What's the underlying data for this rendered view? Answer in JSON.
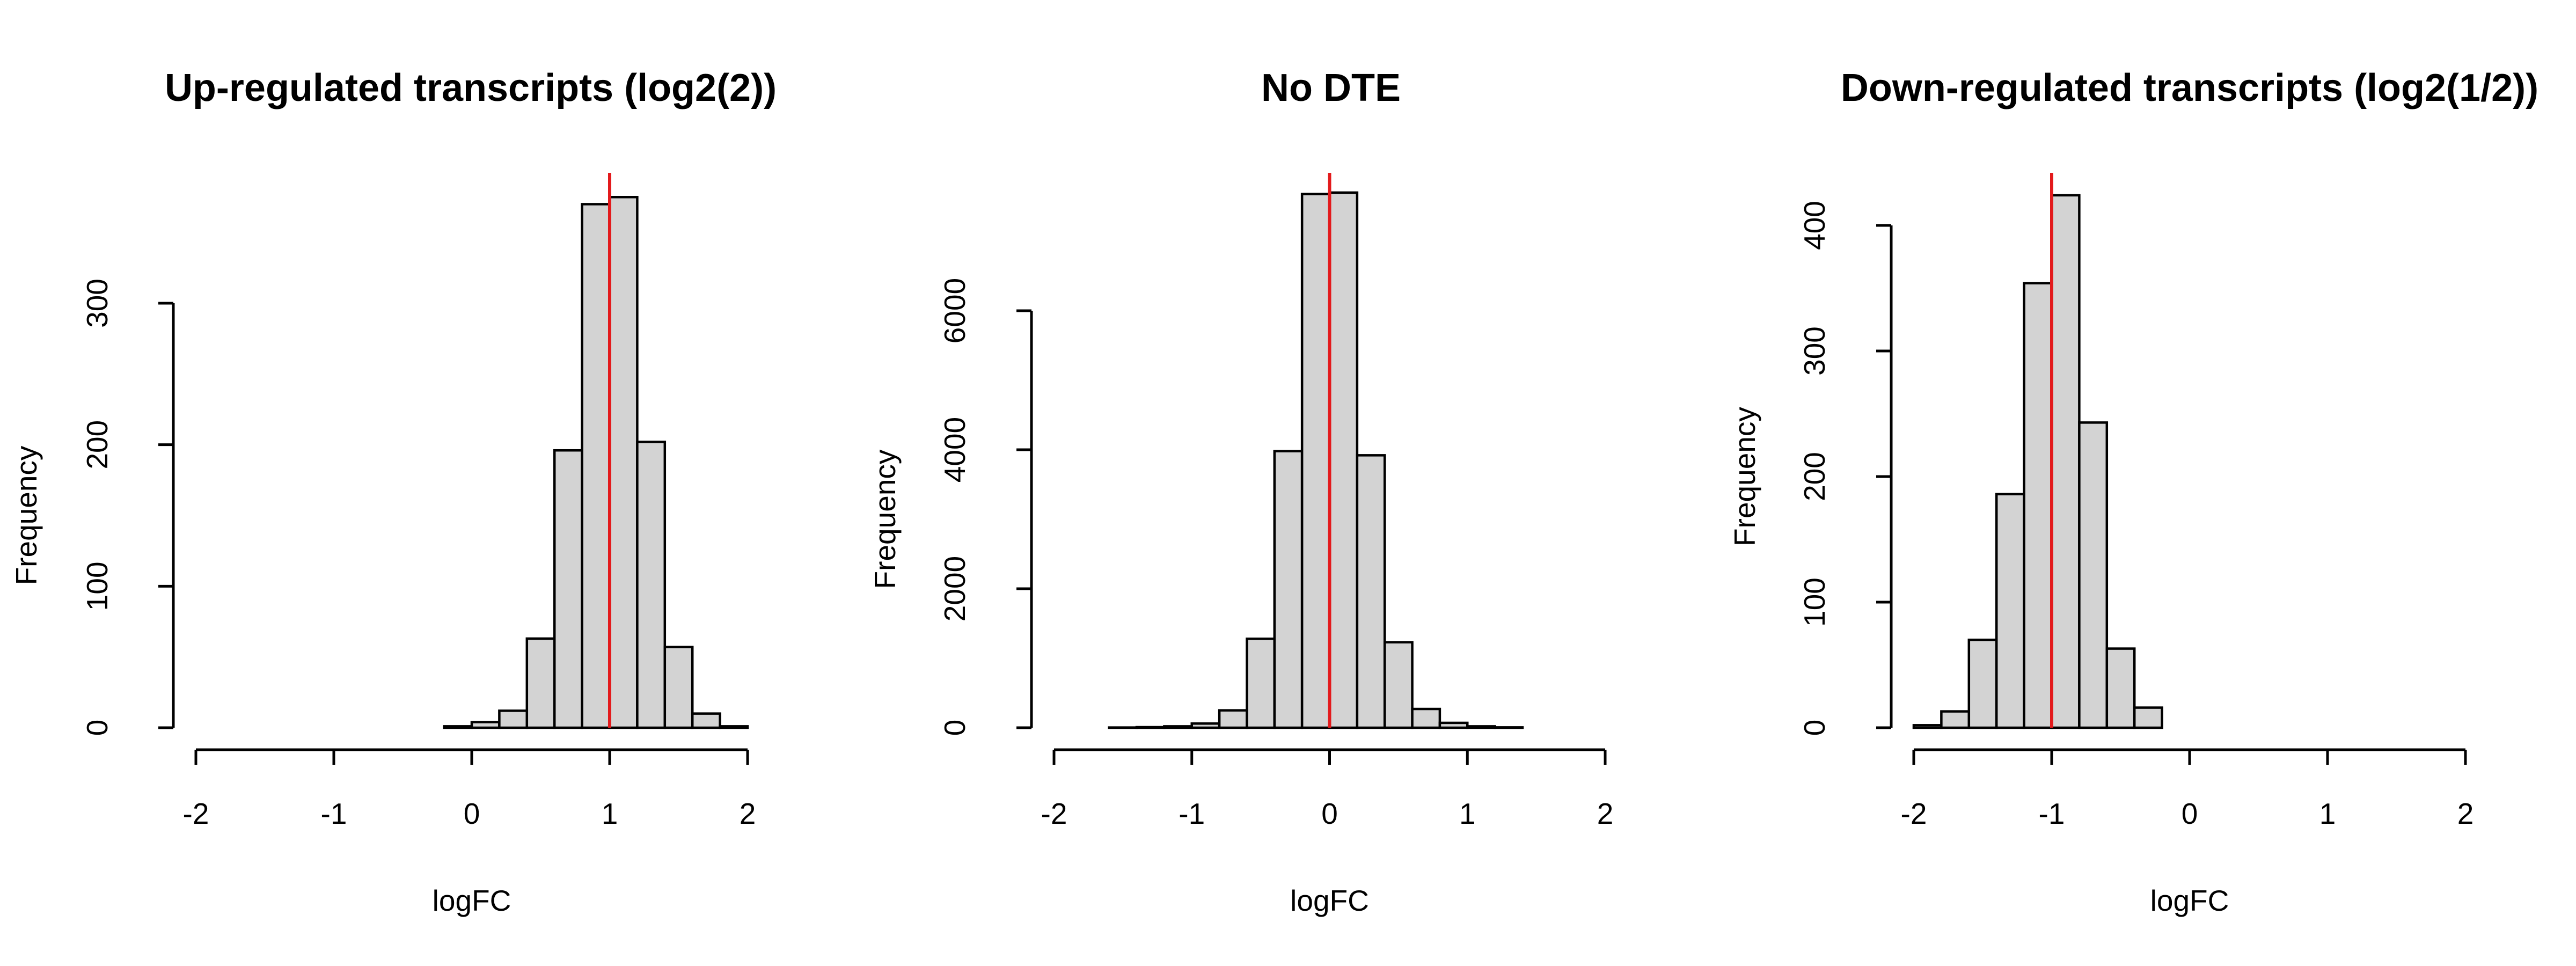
{
  "chart_data": [
    {
      "type": "histogram",
      "title": "Up-regulated transcripts (log2(2))",
      "xlabel": "logFC",
      "ylabel": "Frequency",
      "xlim": [
        -2,
        2
      ],
      "xticks": [
        -2,
        -1,
        0,
        1,
        2
      ],
      "xtick_labels": [
        "-2",
        "-1",
        "0",
        "1",
        "2"
      ],
      "yticks": [
        0,
        100,
        200,
        300
      ],
      "ytick_labels": [
        "0",
        "100",
        "200",
        "300"
      ],
      "bin_edges": [
        -0.2,
        0.0,
        0.2,
        0.4,
        0.6,
        0.8,
        1.0,
        1.2,
        1.4,
        1.6,
        1.8,
        2.0
      ],
      "counts": [
        1,
        4,
        12,
        63,
        196,
        370,
        375,
        202,
        57,
        10,
        1
      ],
      "reference_line": {
        "x": 1,
        "color": "#e31a1c"
      }
    },
    {
      "type": "histogram",
      "title": "No DTE",
      "xlabel": "logFC",
      "ylabel": "Frequency",
      "xlim": [
        -2,
        2
      ],
      "xticks": [
        -2,
        -1,
        0,
        1,
        2
      ],
      "xtick_labels": [
        "-2",
        "-1",
        "0",
        "1",
        "2"
      ],
      "yticks": [
        0,
        2000,
        4000,
        6000
      ],
      "ytick_labels": [
        "0",
        "2000",
        "4000",
        "6000"
      ],
      "bin_edges": [
        -1.6,
        -1.4,
        -1.2,
        -1.0,
        -0.8,
        -0.6,
        -0.4,
        -0.2,
        0.0,
        0.2,
        0.4,
        0.6,
        0.8,
        1.0,
        1.2,
        1.4
      ],
      "counts": [
        3,
        8,
        20,
        60,
        250,
        1280,
        3980,
        7680,
        7700,
        3920,
        1230,
        270,
        70,
        20,
        5
      ],
      "reference_line": {
        "x": 0,
        "color": "#e31a1c"
      }
    },
    {
      "type": "histogram",
      "title": "Down-regulated transcripts (log2(1/2))",
      "xlabel": "logFC",
      "ylabel": "Frequency",
      "xlim": [
        -2,
        2
      ],
      "xticks": [
        -2,
        -1,
        0,
        1,
        2
      ],
      "xtick_labels": [
        "-2",
        "-1",
        "0",
        "1",
        "2"
      ],
      "yticks": [
        0,
        100,
        200,
        300,
        400
      ],
      "ytick_labels": [
        "0",
        "100",
        "200",
        "300",
        "400"
      ],
      "bin_edges": [
        -2.0,
        -1.8,
        -1.6,
        -1.4,
        -1.2,
        -1.0,
        -0.8,
        -0.6,
        -0.4,
        -0.2
      ],
      "counts": [
        2,
        13,
        70,
        186,
        354,
        424,
        243,
        63,
        16
      ],
      "reference_line": {
        "x": -1,
        "color": "#e31a1c"
      }
    }
  ]
}
